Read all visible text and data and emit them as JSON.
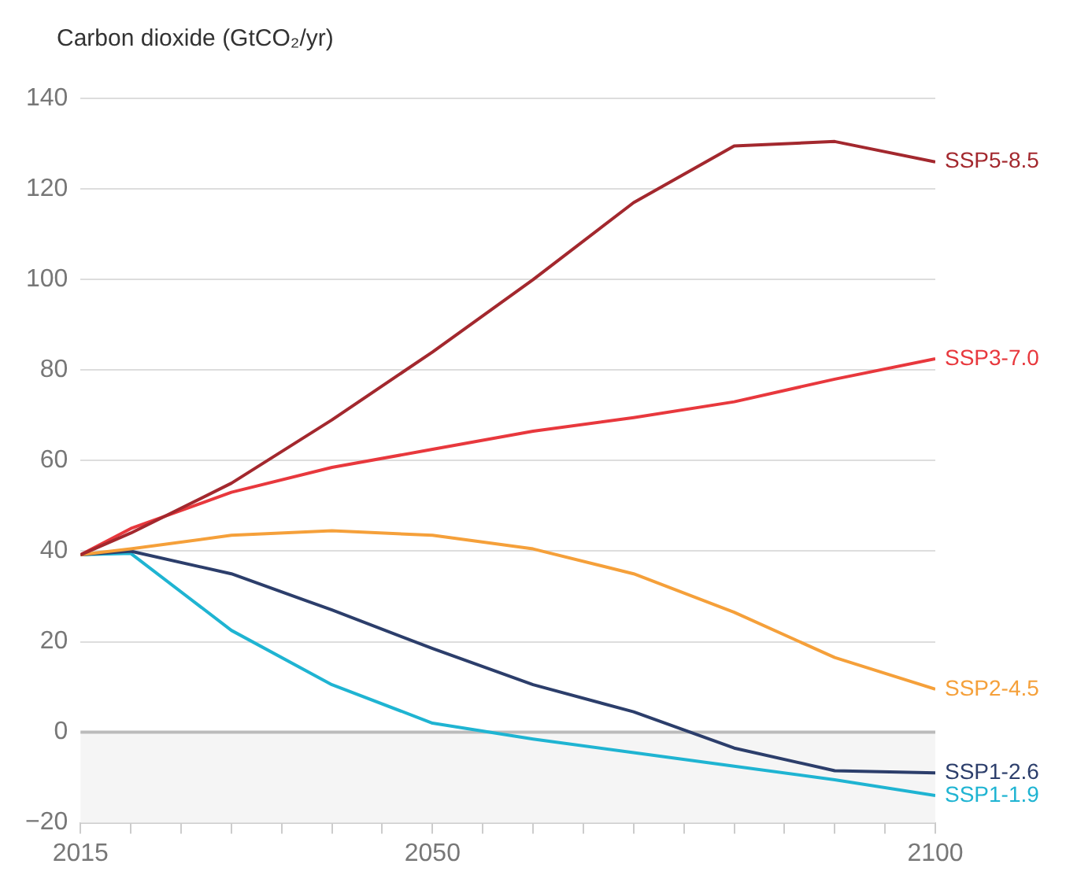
{
  "chart_data": {
    "type": "line",
    "ylabel": "Carbon dioxide (GtCO₂/yr)",
    "x": [
      2015,
      2020,
      2030,
      2040,
      2050,
      2060,
      2070,
      2080,
      2090,
      2100
    ],
    "series": [
      {
        "name": "SSP5-8.5",
        "color": "#a3282e",
        "values": [
          39.2,
          44,
          55,
          69,
          84,
          100,
          117,
          129.5,
          130.5,
          126
        ]
      },
      {
        "name": "SSP3-7.0",
        "color": "#e8383d",
        "values": [
          39.2,
          45,
          53,
          58.5,
          62.5,
          66.5,
          69.5,
          73,
          78,
          82.5
        ]
      },
      {
        "name": "SSP2-4.5",
        "color": "#f5a03a",
        "values": [
          39.2,
          40.5,
          43.5,
          44.5,
          43.5,
          40.5,
          35,
          26.5,
          16.5,
          9.5
        ]
      },
      {
        "name": "SSP1-2.6",
        "color": "#2c3e6b",
        "values": [
          39.2,
          40,
          35,
          27,
          18.5,
          10.5,
          4.5,
          -3.5,
          -8.5,
          -9
        ]
      },
      {
        "name": "SSP1-1.9",
        "color": "#1fb4d2",
        "values": [
          39.2,
          39.5,
          22.5,
          10.5,
          2,
          -1.5,
          -4.5,
          -7.5,
          -10.5,
          -14
        ]
      }
    ],
    "xlim": [
      2015,
      2100
    ],
    "xticks": [
      2015,
      {
        "value": 2020,
        "label": null
      },
      {
        "value": 2025,
        "label": null
      },
      {
        "value": 2030,
        "label": null
      },
      {
        "value": 2035,
        "label": null
      },
      {
        "value": 2040,
        "label": null
      },
      {
        "value": 2045,
        "label": null
      },
      2050,
      {
        "value": 2055,
        "label": null
      },
      {
        "value": 2060,
        "label": null
      },
      {
        "value": 2065,
        "label": null
      },
      {
        "value": 2070,
        "label": null
      },
      {
        "value": 2075,
        "label": null
      },
      {
        "value": 2080,
        "label": null
      },
      {
        "value": 2085,
        "label": null
      },
      {
        "value": 2090,
        "label": null
      },
      {
        "value": 2095,
        "label": null
      },
      2100
    ],
    "ylim": [
      -20,
      140
    ],
    "yticks": [
      -20,
      0,
      20,
      40,
      60,
      80,
      100,
      120,
      140
    ],
    "bands": [
      {
        "axis": "y",
        "from": -20,
        "to": 0,
        "color": "#f5f5f5"
      }
    ],
    "ref_lines": [
      {
        "axis": "y",
        "value": 0,
        "color": "#bbbbbb"
      }
    ],
    "grid": "y",
    "legend": false,
    "marker": "none",
    "line_style": "solid"
  }
}
